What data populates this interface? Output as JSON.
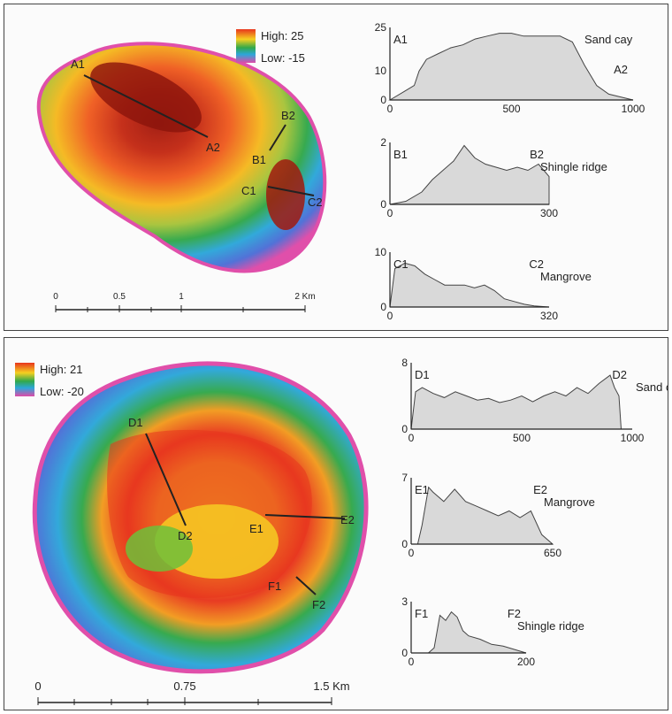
{
  "figure": {
    "panels": [
      {
        "id": "top",
        "legend": {
          "high": "High: 25",
          "low": "Low: -15"
        },
        "scale_bar": {
          "ticks": [
            "0",
            "0.5",
            "1",
            "2 Km"
          ]
        },
        "transects": [
          {
            "start": "A1",
            "end": "A2"
          },
          {
            "start": "B1",
            "end": "B2"
          },
          {
            "start": "C1",
            "end": "C2"
          }
        ]
      },
      {
        "id": "bottom",
        "legend": {
          "high": "High: 21",
          "low": "Low: -20"
        },
        "scale_bar": {
          "ticks": [
            "0",
            "0.75",
            "1.5 Km"
          ]
        },
        "transects": [
          {
            "start": "D1",
            "end": "D2"
          },
          {
            "start": "E1",
            "end": "E2"
          },
          {
            "start": "F1",
            "end": "F2"
          }
        ]
      }
    ],
    "colors": {
      "profile_fill": "#d9d9d9",
      "profile_line": "#444444",
      "ramp": [
        "#a11a0e",
        "#e8351d",
        "#f29a1e",
        "#f5d020",
        "#31a84a",
        "#2ca7d9",
        "#3b4ec9",
        "#e04aa8"
      ]
    }
  },
  "chart_data": [
    {
      "type": "area",
      "label_left": "A1",
      "label_right": "A2",
      "title": "Sand cay",
      "ylim": [
        0,
        25
      ],
      "yticks": [
        "0",
        "10",
        "25"
      ],
      "xlim": [
        0,
        1000
      ],
      "xticks": [
        "0",
        "500",
        "1000"
      ],
      "x": [
        0,
        60,
        100,
        120,
        150,
        200,
        250,
        300,
        350,
        400,
        450,
        500,
        550,
        600,
        650,
        700,
        750,
        800,
        850,
        900,
        1000
      ],
      "y": [
        0,
        3,
        5,
        10,
        14,
        16,
        18,
        19,
        21,
        22,
        23,
        23,
        22,
        22,
        22,
        22,
        20,
        12,
        5,
        2,
        0
      ]
    },
    {
      "type": "area",
      "label_left": "B1",
      "label_right": "B2",
      "title": "Shingle ridge",
      "ylim": [
        0,
        2
      ],
      "yticks": [
        "0",
        "2"
      ],
      "xlim": [
        0,
        300
      ],
      "xticks": [
        "0",
        "300"
      ],
      "x": [
        0,
        30,
        60,
        80,
        100,
        120,
        140,
        160,
        180,
        200,
        220,
        240,
        260,
        280,
        290,
        300
      ],
      "y": [
        0,
        0.1,
        0.4,
        0.8,
        1.1,
        1.4,
        1.9,
        1.5,
        1.3,
        1.2,
        1.1,
        1.2,
        1.1,
        1.3,
        1.1,
        0.9
      ]
    },
    {
      "type": "area",
      "label_left": "C1",
      "label_right": "C2",
      "title": "Mangrove",
      "ylim": [
        0,
        10
      ],
      "yticks": [
        "0",
        "10"
      ],
      "xlim": [
        0,
        320
      ],
      "xticks": [
        "0",
        "320"
      ],
      "x": [
        0,
        10,
        30,
        50,
        70,
        90,
        110,
        130,
        150,
        170,
        190,
        210,
        230,
        250,
        270,
        290,
        320
      ],
      "y": [
        0,
        7,
        8,
        7.5,
        6,
        5,
        4,
        4,
        4,
        3.5,
        4,
        3,
        1.5,
        1,
        0.5,
        0.2,
        0
      ]
    },
    {
      "type": "area",
      "label_left": "D1",
      "label_right": "D2",
      "title": "Sand cay",
      "ylim": [
        0,
        8
      ],
      "yticks": [
        "0",
        "8"
      ],
      "xlim": [
        0,
        1000
      ],
      "xticks": [
        "0",
        "500",
        "1000"
      ],
      "x": [
        0,
        20,
        50,
        100,
        150,
        200,
        250,
        300,
        350,
        400,
        450,
        500,
        550,
        600,
        650,
        700,
        750,
        800,
        850,
        900,
        920,
        940,
        950
      ],
      "y": [
        0,
        4.5,
        5,
        4.3,
        3.8,
        4.5,
        4,
        3.5,
        3.7,
        3.2,
        3.5,
        4,
        3.3,
        4,
        4.5,
        4,
        5,
        4.3,
        5.5,
        6.5,
        5,
        4,
        0
      ]
    },
    {
      "type": "area",
      "label_left": "E1",
      "label_right": "E2",
      "title": "Mangrove",
      "ylim": [
        0,
        7
      ],
      "yticks": [
        "0",
        "7"
      ],
      "xlim": [
        0,
        650
      ],
      "xticks": [
        "0",
        "650"
      ],
      "x": [
        0,
        30,
        50,
        80,
        100,
        150,
        200,
        250,
        300,
        350,
        400,
        450,
        500,
        550,
        600,
        650
      ],
      "y": [
        0,
        0,
        2,
        6,
        5.5,
        4.5,
        5.8,
        4.5,
        4,
        3.5,
        3,
        3.5,
        2.8,
        3.5,
        1,
        0
      ]
    },
    {
      "type": "area",
      "label_left": "F1",
      "label_right": "F2",
      "title": "Shingle ridge",
      "ylim": [
        0,
        3
      ],
      "yticks": [
        "0",
        "3"
      ],
      "xlim": [
        0,
        200
      ],
      "xticks": [
        "0",
        "200"
      ],
      "x": [
        0,
        30,
        40,
        50,
        60,
        70,
        80,
        90,
        100,
        120,
        140,
        160,
        180,
        200
      ],
      "y": [
        0,
        0,
        0.3,
        2.2,
        1.9,
        2.4,
        2.1,
        1.3,
        1,
        0.8,
        0.5,
        0.4,
        0.2,
        0
      ]
    }
  ]
}
